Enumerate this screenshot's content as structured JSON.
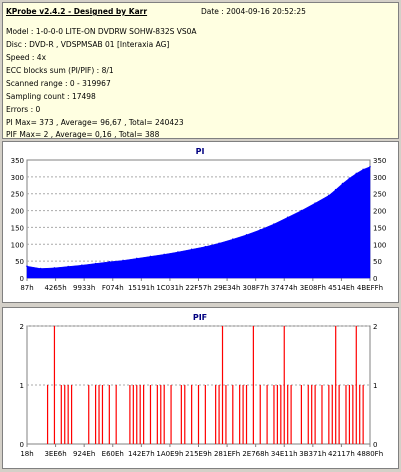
{
  "info": {
    "header": "KProbe v2.4.2 - Designed by Karr",
    "date": "Date : 2004-09-16 20:52:25",
    "model": "Model : 1-0-0-0 LITE-ON DVDRW SOHW-832S  VS0A",
    "disc": "Disc : DVD-R , VDSPMSAB 01 [Interaxia AG]",
    "speed": "Speed : 4x",
    "ecc": "ECC blocks sum (PI/PIF) : 8/1",
    "scanned": "Scanned range : 0 - 319967",
    "sampling": "Sampling count : 17498",
    "errors": "Errors : 0",
    "pi_stats": "PI Max= 373 , Average= 96,67 , Total= 240423",
    "pif_stats": "PIF Max= 2 , Average= 0,16 , Total= 388"
  },
  "colors": {
    "pi_fill": "#0000ff",
    "pif_bar": "#ff0000",
    "info_bg": "#ffffe1",
    "title": "#000080"
  },
  "chart_data": [
    {
      "type": "area",
      "title": "PI",
      "xlabel": "",
      "ylabel": "",
      "ylim": [
        0,
        350
      ],
      "yticks": [
        0,
        50,
        100,
        150,
        200,
        250,
        300,
        350
      ],
      "x_tick_labels": [
        "87h",
        "4265h",
        "9933h",
        "F074h",
        "15191h",
        "1C031h",
        "22F57h",
        "29E34h",
        "308F7h",
        "37474h",
        "3E08Fh",
        "4514Eh",
        "4BEFFh"
      ],
      "grid": true,
      "series": [
        {
          "x": [
            0,
            4,
            8,
            12,
            16,
            20,
            24,
            28,
            32,
            36,
            40,
            44,
            48,
            52,
            56,
            60,
            64,
            68,
            72,
            76,
            80,
            84,
            88,
            90,
            92,
            94,
            96,
            98,
            100
          ],
          "y": [
            35,
            28,
            30,
            34,
            38,
            43,
            48,
            52,
            58,
            64,
            70,
            77,
            85,
            93,
            103,
            115,
            128,
            143,
            160,
            180,
            200,
            222,
            245,
            262,
            280,
            296,
            310,
            322,
            330
          ]
        }
      ]
    },
    {
      "type": "bar",
      "title": "PIF",
      "xlabel": "",
      "ylabel": "",
      "ylim": [
        0,
        2
      ],
      "yticks": [
        0,
        1,
        2
      ],
      "x_tick_labels": [
        "18h",
        "3EE6h",
        "924Eh",
        "E60Eh",
        "142E7h",
        "1A0E9h",
        "215E9h",
        "281EFh",
        "2E768h",
        "34E11h",
        "3B371h",
        "42117h",
        "4880Fh"
      ],
      "grid": true,
      "series": [
        {
          "x": [
            6,
            8,
            10,
            11,
            12,
            13,
            18,
            20,
            21,
            22,
            24,
            26,
            30,
            31,
            32,
            33,
            34,
            36,
            38,
            39,
            40,
            42,
            45,
            46,
            48,
            50,
            52,
            55,
            56,
            57,
            58,
            60,
            62,
            63,
            64,
            66,
            68,
            70,
            72,
            73,
            74,
            75,
            76,
            77,
            80,
            82,
            83,
            84,
            86,
            88,
            89,
            90,
            91,
            93,
            94,
            95,
            96,
            97,
            98
          ],
          "y": [
            1,
            2,
            1,
            1,
            1,
            1,
            1,
            1,
            1,
            1,
            1,
            1,
            1,
            1,
            1,
            1,
            1,
            1,
            1,
            1,
            1,
            1,
            1,
            1,
            1,
            1,
            1,
            1,
            1,
            2,
            1,
            1,
            1,
            1,
            1,
            2,
            1,
            1,
            1,
            1,
            1,
            2,
            1,
            1,
            1,
            1,
            1,
            1,
            1,
            1,
            1,
            2,
            1,
            1,
            1,
            1,
            2,
            1,
            1
          ]
        }
      ]
    }
  ]
}
